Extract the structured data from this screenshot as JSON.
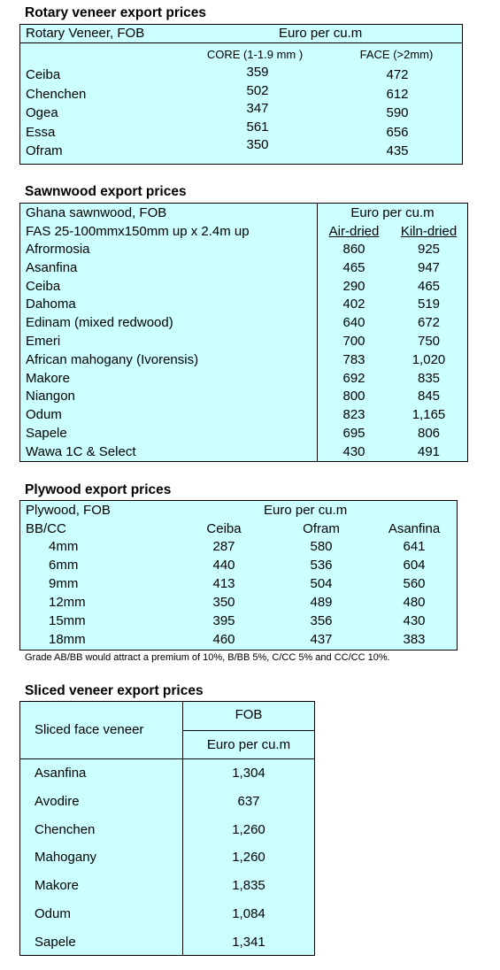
{
  "rotary": {
    "title": "Rotary veneer export prices",
    "header_left": "Rotary Veneer,  FOB",
    "header_unit": "Euro  per cu.m",
    "col_core": "CORE (1-1.9 mm )",
    "col_face": "FACE (>2mm)",
    "rows": [
      {
        "name": "Ceiba",
        "core": "359",
        "face": "472"
      },
      {
        "name": "Chenchen",
        "core": "502",
        "face": "612"
      },
      {
        "name": "Ogea",
        "core": "347",
        "face": "590"
      },
      {
        "name": "Essa",
        "core": "561",
        "face": "656"
      },
      {
        "name": "Ofram",
        "core": "350",
        "face": "435"
      }
    ]
  },
  "sawnwood": {
    "title": "Sawnwood export prices",
    "header_left": "Ghana sawnwood, FOB",
    "header_unit": "Euro per cu.m",
    "spec": "FAS 25-100mmx150mm up x 2.4m up",
    "col_air": "Air-dried",
    "col_kiln": "Kiln-dried",
    "rows": [
      {
        "name": "Afrormosia",
        "air": "860",
        "kiln": "925"
      },
      {
        "name": "Asanfina",
        "air": "465",
        "kiln": "947"
      },
      {
        "name": "Ceiba",
        "air": "290",
        "kiln": "465"
      },
      {
        "name": "Dahoma",
        "air": "402",
        "kiln": "519"
      },
      {
        "name": "Edinam (mixed redwood)",
        "air": "640",
        "kiln": "672"
      },
      {
        "name": "Emeri",
        "air": "700",
        "kiln": "750"
      },
      {
        "name": "African mahogany (Ivorensis)",
        "air": "783",
        "kiln": "1,020"
      },
      {
        "name": "Makore",
        "air": "692",
        "kiln": "835"
      },
      {
        "name": "Niangon",
        "air": "800",
        "kiln": "845"
      },
      {
        "name": "Odum",
        "air": "823",
        "kiln": "1,165"
      },
      {
        "name": "Sapele",
        "air": "695",
        "kiln": "806"
      },
      {
        "name": "Wawa 1C & Select",
        "air": "430",
        "kiln": "491"
      }
    ]
  },
  "plywood": {
    "title": "Plywood export prices",
    "header_left": "Plywood, FOB",
    "header_unit": "Euro per cu.m",
    "grade": "BB/CC",
    "col_ceiba": "Ceiba",
    "col_ofram": "Ofram",
    "col_asanfina": "Asanfina",
    "rows": [
      {
        "size": "4mm",
        "ceiba": "287",
        "ofram": "580",
        "asanfina": "641"
      },
      {
        "size": "6mm",
        "ceiba": "440",
        "ofram": "536",
        "asanfina": "604"
      },
      {
        "size": "9mm",
        "ceiba": "413",
        "ofram": "504",
        "asanfina": "560"
      },
      {
        "size": "12mm",
        "ceiba": "350",
        "ofram": "489",
        "asanfina": "480"
      },
      {
        "size": "15mm",
        "ceiba": "395",
        "ofram": "356",
        "asanfina": "430"
      },
      {
        "size": "18mm",
        "ceiba": "460",
        "ofram": "437",
        "asanfina": "383"
      }
    ],
    "note": "Grade AB/BB would attract a premium of 10%, B/BB 5%, C/CC 5% and CC/CC 10%."
  },
  "sliced": {
    "title": "Sliced veneer export prices",
    "header_left": "Sliced face veneer",
    "header_fob": "FOB",
    "header_unit": "Euro per cu.m",
    "rows": [
      {
        "name": "Asanfina",
        "price": "1,304"
      },
      {
        "name": "Avodire",
        "price": "637"
      },
      {
        "name": "Chenchen",
        "price": "1,260"
      },
      {
        "name": "Mahogany",
        "price": "1,260"
      },
      {
        "name": "Makore",
        "price": "1,835"
      },
      {
        "name": "Odum",
        "price": "1,084"
      },
      {
        "name": "Sapele",
        "price": "1,341"
      }
    ]
  }
}
